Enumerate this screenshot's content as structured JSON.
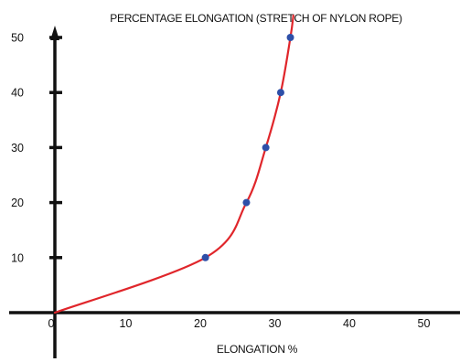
{
  "chart_data": {
    "type": "line",
    "title": "PERCENTAGE ELONGATION (STRETCH OF NYLON ROPE)",
    "xlabel": "ELONGATION %",
    "ylabel": "",
    "xlim": [
      0,
      53
    ],
    "ylim": [
      0,
      55
    ],
    "x_ticks": [
      0,
      10,
      20,
      30,
      40,
      50
    ],
    "y_ticks": [
      10,
      20,
      30,
      40,
      50
    ],
    "grid": false,
    "legend": "none",
    "series": [
      {
        "color": "#e0262b",
        "marker_color": "#2e4fa8",
        "points": [
          {
            "x": 0,
            "y": 0
          },
          {
            "x": 20.2,
            "y": 10
          },
          {
            "x": 25.7,
            "y": 20
          },
          {
            "x": 28.3,
            "y": 30
          },
          {
            "x": 30.3,
            "y": 40
          },
          {
            "x": 31.6,
            "y": 50
          }
        ],
        "markers": [
          {
            "x": 20.2,
            "y": 10
          },
          {
            "x": 25.7,
            "y": 20
          },
          {
            "x": 28.3,
            "y": 30
          },
          {
            "x": 30.3,
            "y": 40
          },
          {
            "x": 31.6,
            "y": 50
          }
        ],
        "curve_end": {
          "x": 32.0,
          "y": 54
        }
      }
    ],
    "colors": {
      "axis": "#111111",
      "line": "#e0262b",
      "marker": "#2e4fa8"
    }
  }
}
